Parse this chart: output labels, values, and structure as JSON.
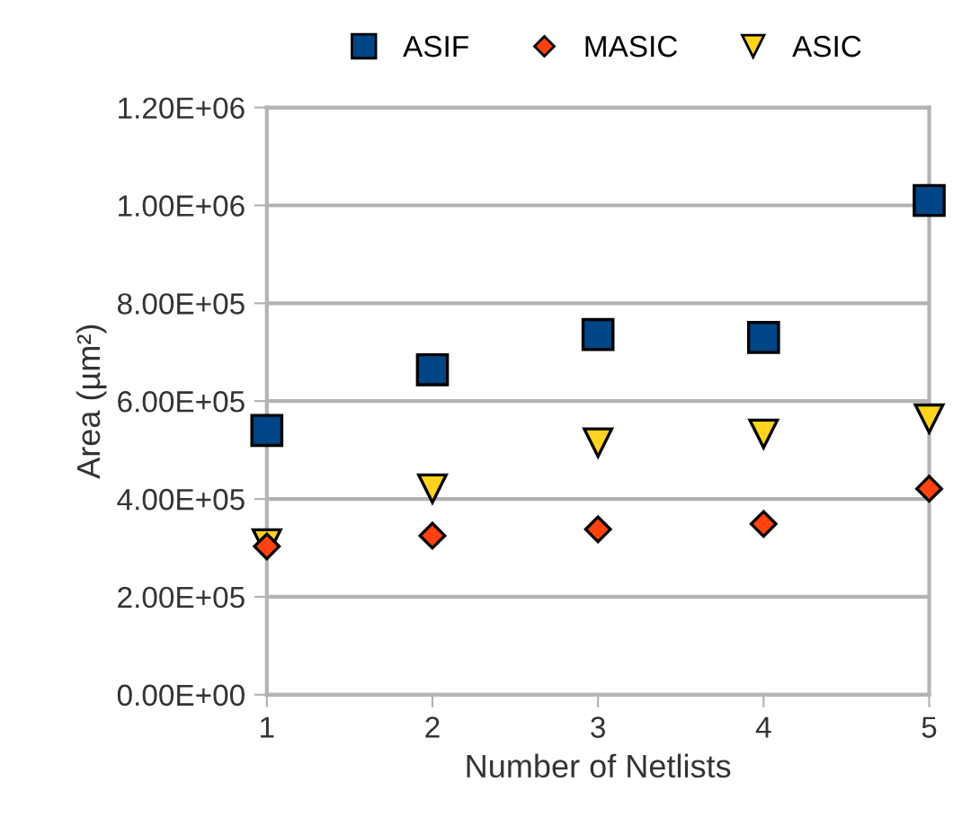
{
  "chart_data": {
    "type": "scatter",
    "xlabel": "Number of Netlists",
    "ylabel": "Area (µm²)",
    "x": [
      1,
      2,
      3,
      4,
      5
    ],
    "series": [
      {
        "name": "ASIF",
        "color": "#004586",
        "marker": "square",
        "values": [
          540000,
          664000,
          736000,
          730000,
          1010000
        ]
      },
      {
        "name": "MASIC",
        "color": "#ff420e",
        "marker": "diamond",
        "values": [
          303000,
          325000,
          338000,
          349000,
          421000
        ]
      },
      {
        "name": "ASIC",
        "color": "#ffd320",
        "marker": "triangle",
        "values": [
          309000,
          421000,
          515000,
          533000,
          564000
        ]
      }
    ],
    "xlim": [
      1,
      5
    ],
    "xticks": [
      1,
      2,
      3,
      4,
      5
    ],
    "ylim": [
      0,
      1200000
    ],
    "yticks": [
      {
        "value": 0,
        "label": "0.00E+00"
      },
      {
        "value": 200000,
        "label": "2.00E+05"
      },
      {
        "value": 400000,
        "label": "4.00E+05"
      },
      {
        "value": 600000,
        "label": "6.00E+05"
      },
      {
        "value": 800000,
        "label": "8.00E+05"
      },
      {
        "value": 1000000,
        "label": "1.00E+06"
      },
      {
        "value": 1200000,
        "label": "1.20E+06"
      }
    ],
    "grid": "y",
    "legend": "top"
  }
}
